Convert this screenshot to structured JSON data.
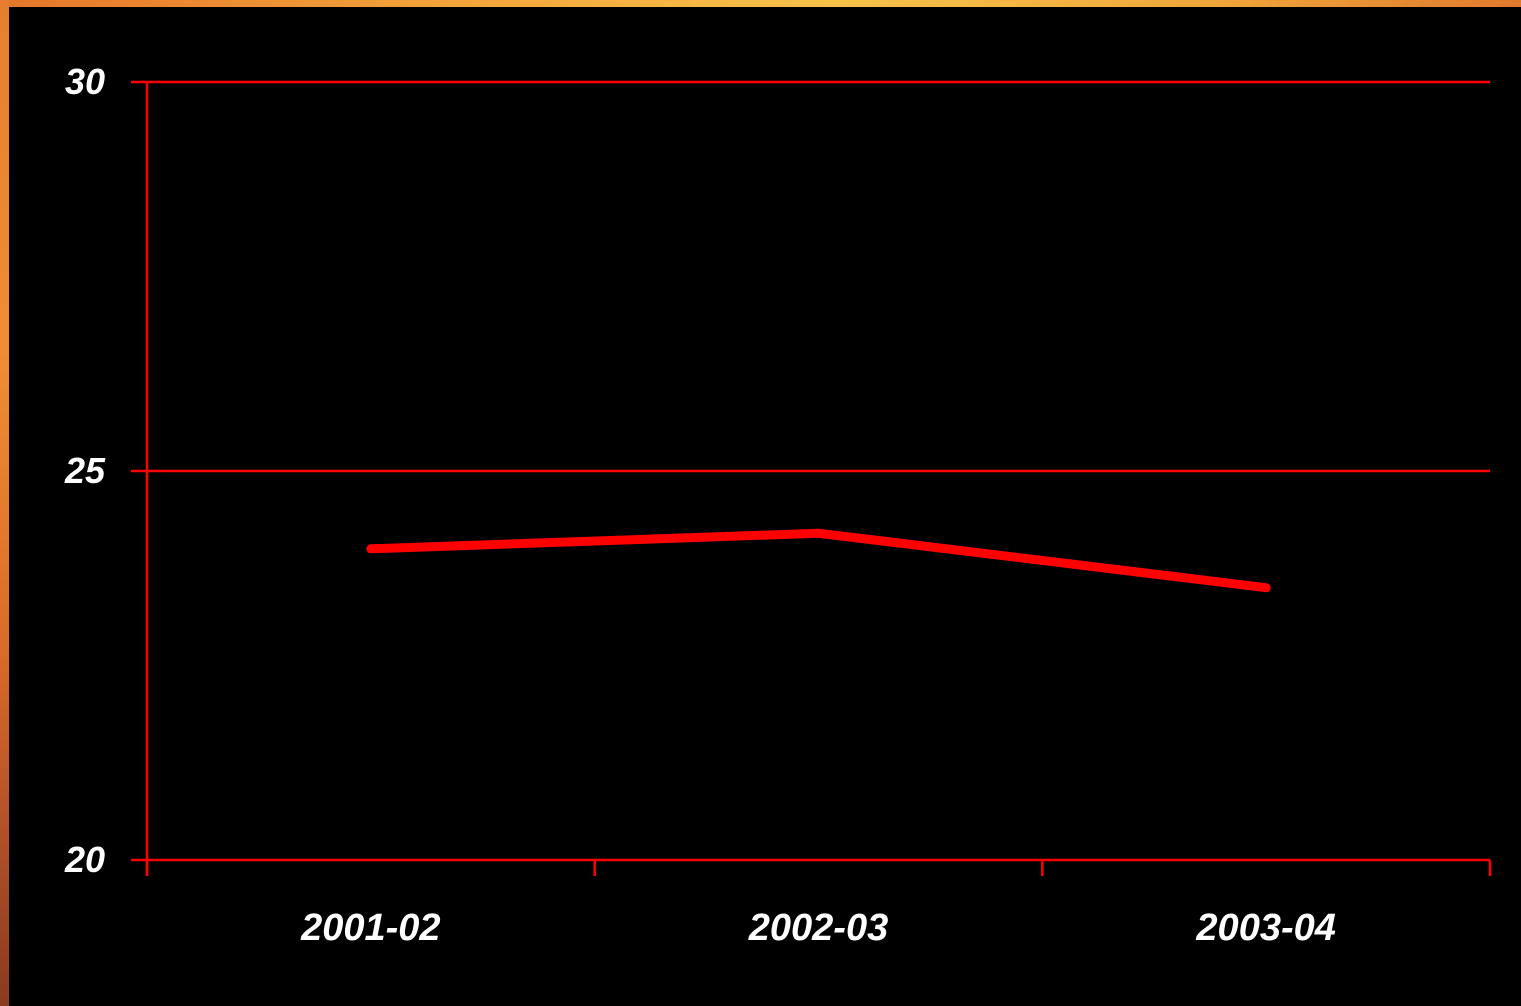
{
  "chart_data": {
    "type": "line",
    "categories": [
      "2001-02",
      "2002-03",
      "2003-04"
    ],
    "series": [
      {
        "values": [
          24.0,
          24.2,
          23.5
        ]
      }
    ],
    "ylim": [
      20,
      30
    ],
    "yticks": [
      20,
      25,
      30
    ],
    "ytick_labels": [
      "20",
      "25",
      "30"
    ],
    "grid": true,
    "colors": {
      "background": "#000000",
      "axis": "#ff0000",
      "line": "#ff0000",
      "text": "#ffffff"
    }
  }
}
